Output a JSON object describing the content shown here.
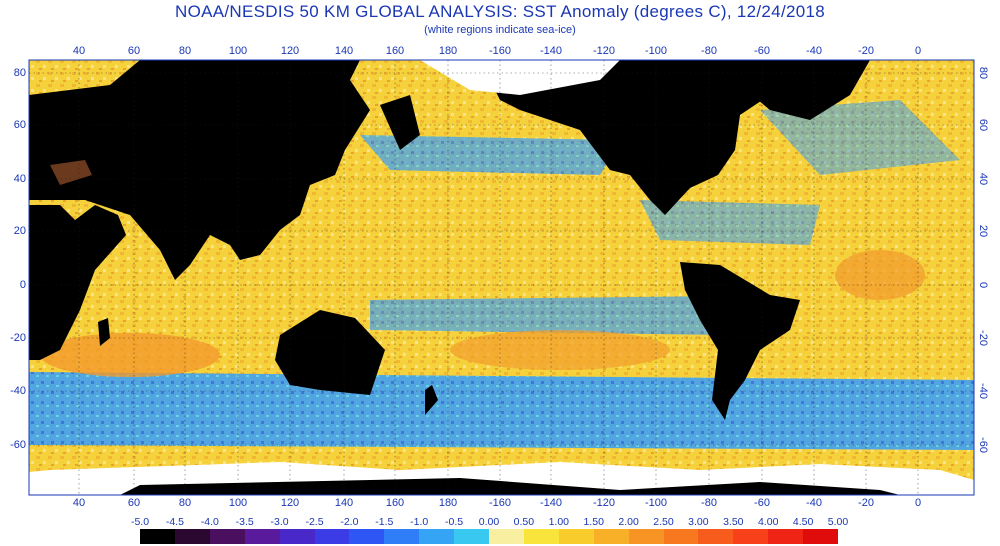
{
  "header": {
    "title": "NOAA/NESDIS 50 KM GLOBAL ANALYSIS: SST Anomaly (degrees C), 12/24/2018",
    "subtitle": "(white regions indicate sea-ice)"
  },
  "axes": {
    "top_lon_labels": [
      "40",
      "60",
      "80",
      "100",
      "120",
      "140",
      "160",
      "180",
      "-160",
      "-140",
      "-120",
      "-100",
      "-80",
      "-60",
      "-40",
      "-20",
      "0"
    ],
    "bottom_lon_labels": [
      "40",
      "60",
      "80",
      "100",
      "120",
      "140",
      "160",
      "180",
      "-160",
      "-140",
      "-120",
      "-100",
      "-80",
      "-60",
      "-40",
      "-20",
      "0"
    ],
    "left_lat_labels": [
      "80",
      "60",
      "40",
      "20",
      "0",
      "-20",
      "-40",
      "-60"
    ],
    "right_lat_labels": [
      "80",
      "60",
      "40",
      "20",
      "0",
      "-20",
      "-40",
      "-60"
    ]
  },
  "colorbar": {
    "labels": [
      "-5.0",
      "-4.5",
      "-4.0",
      "-3.5",
      "-3.0",
      "-2.5",
      "-2.0",
      "-1.5",
      "-1.0",
      "-0.5",
      "0.00",
      "0.50",
      "1.00",
      "1.50",
      "2.00",
      "2.50",
      "3.00",
      "3.50",
      "4.00",
      "4.50",
      "5.00"
    ],
    "colors": [
      "#000000",
      "#2a0830",
      "#4a0f5e",
      "#5a1a9c",
      "#4828c8",
      "#3c3ce6",
      "#2e56f5",
      "#2f7ef7",
      "#35a4f5",
      "#38c8f0",
      "#f8f0a0",
      "#f8e43a",
      "#f8cc2a",
      "#f8b028",
      "#f89424",
      "#f87820",
      "#f85c1c",
      "#f8401a",
      "#f02414",
      "#e00c0c"
    ]
  },
  "map": {
    "land_color": "#000000",
    "ice_color": "#ffffff",
    "warm_color": "#f7d23a",
    "cool_color": "#46a0f0"
  }
}
